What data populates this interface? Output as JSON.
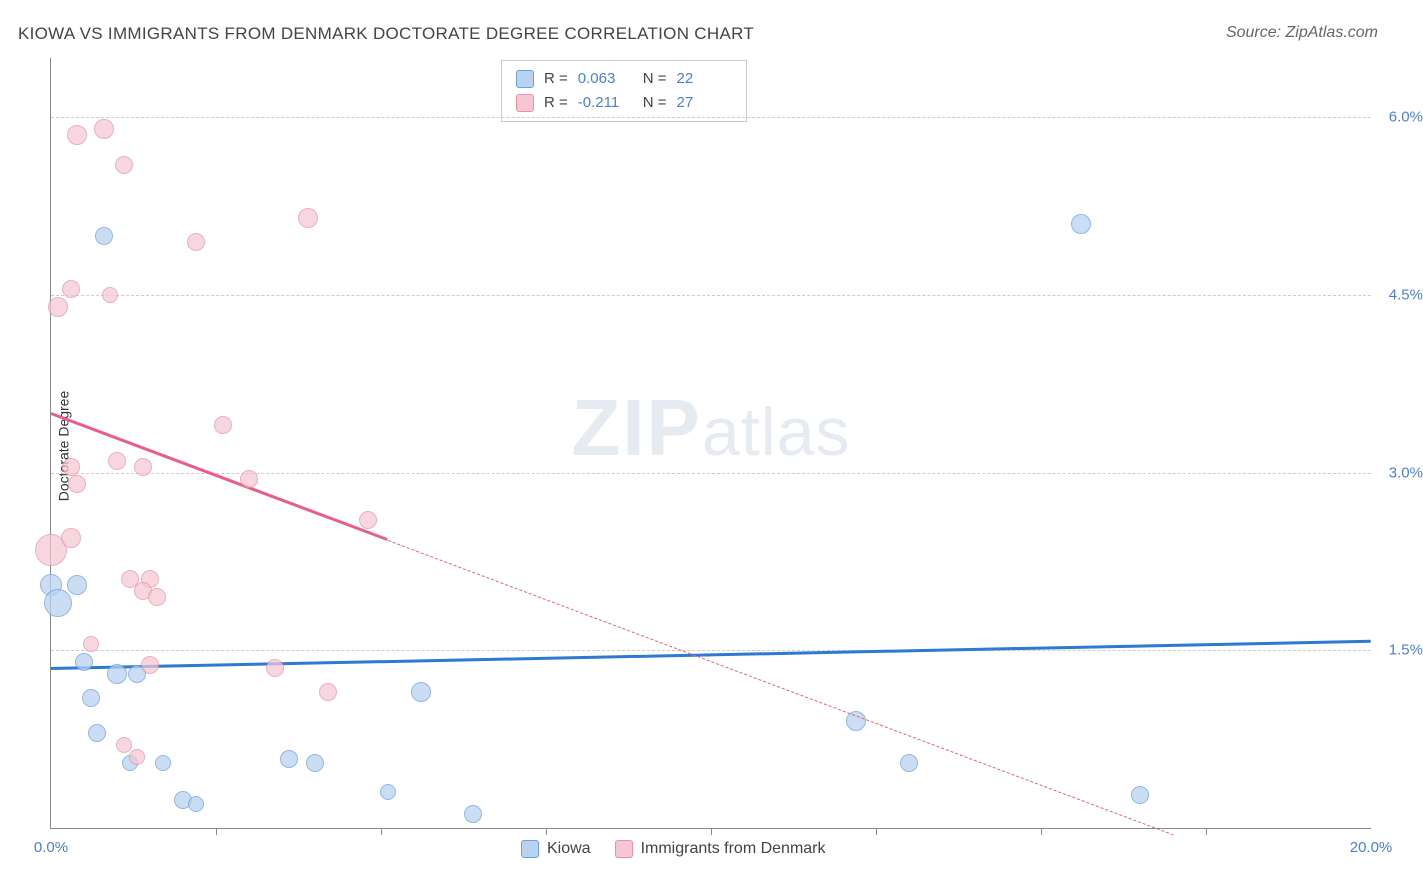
{
  "title": "KIOWA VS IMMIGRANTS FROM DENMARK DOCTORATE DEGREE CORRELATION CHART",
  "source_label": "Source: ZipAtlas.com",
  "ylabel": "Doctorate Degree",
  "watermark_a": "ZIP",
  "watermark_b": "atlas",
  "chart": {
    "type": "scatter",
    "xlim": [
      0,
      20
    ],
    "ylim": [
      0,
      6.5
    ],
    "x_ticks_labeled": [
      {
        "v": 0,
        "label": "0.0%"
      },
      {
        "v": 20,
        "label": "20.0%"
      }
    ],
    "x_ticks_minor": [
      2.5,
      5,
      7.5,
      10,
      12.5,
      15,
      17.5
    ],
    "y_ticks": [
      {
        "v": 1.5,
        "label": "1.5%"
      },
      {
        "v": 3.0,
        "label": "3.0%"
      },
      {
        "v": 4.5,
        "label": "4.5%"
      },
      {
        "v": 6.0,
        "label": "6.0%"
      }
    ],
    "grid_color": "#cccccc",
    "axis_color": "#888888",
    "background": "#ffffff",
    "tick_label_color": "#4a7fd6"
  },
  "series": [
    {
      "key": "kiowa",
      "label": "Kiowa",
      "fill": "#b9d2f0",
      "stroke": "#6aa1e0",
      "line_color": "#2f79d0",
      "r_value": "0.063",
      "n_value": "22",
      "marker_radius": 9,
      "marker_opacity": 0.75,
      "points": [
        {
          "x": 0.0,
          "y": 2.05,
          "r": 11
        },
        {
          "x": 0.1,
          "y": 1.9,
          "r": 14
        },
        {
          "x": 0.4,
          "y": 2.05,
          "r": 10
        },
        {
          "x": 0.8,
          "y": 5.0,
          "r": 9
        },
        {
          "x": 0.5,
          "y": 1.4,
          "r": 9
        },
        {
          "x": 0.6,
          "y": 1.1,
          "r": 9
        },
        {
          "x": 0.7,
          "y": 0.8,
          "r": 9
        },
        {
          "x": 1.0,
          "y": 1.3,
          "r": 10
        },
        {
          "x": 1.3,
          "y": 1.3,
          "r": 9
        },
        {
          "x": 1.2,
          "y": 0.55,
          "r": 8
        },
        {
          "x": 1.7,
          "y": 0.55,
          "r": 8
        },
        {
          "x": 2.0,
          "y": 0.24,
          "r": 9
        },
        {
          "x": 2.2,
          "y": 0.2,
          "r": 8
        },
        {
          "x": 3.6,
          "y": 0.58,
          "r": 9
        },
        {
          "x": 4.0,
          "y": 0.55,
          "r": 9
        },
        {
          "x": 5.1,
          "y": 0.3,
          "r": 8
        },
        {
          "x": 5.6,
          "y": 1.15,
          "r": 10
        },
        {
          "x": 6.4,
          "y": 0.12,
          "r": 9
        },
        {
          "x": 12.2,
          "y": 0.9,
          "r": 10
        },
        {
          "x": 13.0,
          "y": 0.55,
          "r": 9
        },
        {
          "x": 16.5,
          "y": 0.28,
          "r": 9
        },
        {
          "x": 15.6,
          "y": 5.1,
          "r": 10
        }
      ],
      "trend": {
        "x1": 0,
        "y1": 1.35,
        "x2": 20,
        "y2": 1.58,
        "dash_from_x": 20
      }
    },
    {
      "key": "immigrants_denmark",
      "label": "Immigrants from Denmark",
      "fill": "#f6c7d3",
      "stroke": "#e890a8",
      "line_color": "#ea5e85",
      "r_value": "-0.211",
      "n_value": "27",
      "marker_radius": 9,
      "marker_opacity": 0.72,
      "points": [
        {
          "x": 0.0,
          "y": 2.35,
          "r": 16
        },
        {
          "x": 0.1,
          "y": 4.4,
          "r": 10
        },
        {
          "x": 0.3,
          "y": 4.55,
          "r": 9
        },
        {
          "x": 0.4,
          "y": 5.85,
          "r": 10
        },
        {
          "x": 0.8,
          "y": 5.9,
          "r": 10
        },
        {
          "x": 1.1,
          "y": 5.6,
          "r": 9
        },
        {
          "x": 0.3,
          "y": 3.05,
          "r": 9
        },
        {
          "x": 0.4,
          "y": 2.9,
          "r": 9
        },
        {
          "x": 0.3,
          "y": 2.45,
          "r": 10
        },
        {
          "x": 1.0,
          "y": 3.1,
          "r": 9
        },
        {
          "x": 1.4,
          "y": 3.05,
          "r": 9
        },
        {
          "x": 1.2,
          "y": 2.1,
          "r": 9
        },
        {
          "x": 1.5,
          "y": 2.1,
          "r": 9
        },
        {
          "x": 1.4,
          "y": 2.0,
          "r": 9
        },
        {
          "x": 1.6,
          "y": 1.95,
          "r": 9
        },
        {
          "x": 1.5,
          "y": 1.38,
          "r": 9
        },
        {
          "x": 1.1,
          "y": 0.7,
          "r": 8
        },
        {
          "x": 1.3,
          "y": 0.6,
          "r": 8
        },
        {
          "x": 2.2,
          "y": 4.95,
          "r": 9
        },
        {
          "x": 2.6,
          "y": 3.4,
          "r": 9
        },
        {
          "x": 3.0,
          "y": 2.95,
          "r": 9
        },
        {
          "x": 3.9,
          "y": 5.15,
          "r": 10
        },
        {
          "x": 3.4,
          "y": 1.35,
          "r": 9
        },
        {
          "x": 4.2,
          "y": 1.15,
          "r": 9
        },
        {
          "x": 4.8,
          "y": 2.6,
          "r": 9
        },
        {
          "x": 0.6,
          "y": 1.55,
          "r": 8
        },
        {
          "x": 0.9,
          "y": 4.5,
          "r": 8
        }
      ],
      "trend": {
        "x1": 0,
        "y1": 3.5,
        "x2": 17.0,
        "y2": -0.05,
        "dash_from_x": 5.1
      }
    }
  ],
  "legend_top": {
    "r_label": "R =",
    "n_label": "N ="
  },
  "legend_bottom": {
    "items": [
      "kiowa",
      "immigrants_denmark"
    ]
  }
}
